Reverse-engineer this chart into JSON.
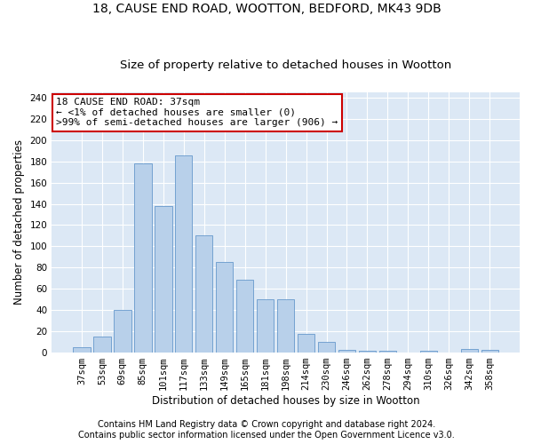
{
  "title_line1": "18, CAUSE END ROAD, WOOTTON, BEDFORD, MK43 9DB",
  "title_line2": "Size of property relative to detached houses in Wootton",
  "xlabel": "Distribution of detached houses by size in Wootton",
  "ylabel": "Number of detached properties",
  "categories": [
    "37sqm",
    "53sqm",
    "69sqm",
    "85sqm",
    "101sqm",
    "117sqm",
    "133sqm",
    "149sqm",
    "165sqm",
    "181sqm",
    "198sqm",
    "214sqm",
    "230sqm",
    "246sqm",
    "262sqm",
    "278sqm",
    "294sqm",
    "310sqm",
    "326sqm",
    "342sqm",
    "358sqm"
  ],
  "values": [
    5,
    15,
    40,
    178,
    138,
    186,
    110,
    85,
    68,
    50,
    50,
    17,
    10,
    2,
    1,
    1,
    0,
    1,
    0,
    3,
    2
  ],
  "bar_color": "#b8d0ea",
  "bar_edge_color": "#6699cc",
  "annotation_box_text": "18 CAUSE END ROAD: 37sqm\n← <1% of detached houses are smaller (0)\n>99% of semi-detached houses are larger (906) →",
  "annotation_box_color": "#ffffff",
  "annotation_box_edge_color": "#cc0000",
  "footer_line1": "Contains HM Land Registry data © Crown copyright and database right 2024.",
  "footer_line2": "Contains public sector information licensed under the Open Government Licence v3.0.",
  "ylim": [
    0,
    245
  ],
  "yticks": [
    0,
    20,
    40,
    60,
    80,
    100,
    120,
    140,
    160,
    180,
    200,
    220,
    240
  ],
  "bg_color": "#ffffff",
  "plot_bg_color": "#dce8f5",
  "grid_color": "#ffffff",
  "title_fontsize": 10,
  "subtitle_fontsize": 9.5,
  "axis_label_fontsize": 8.5,
  "tick_fontsize": 7.5,
  "annot_fontsize": 8,
  "footer_fontsize": 7
}
